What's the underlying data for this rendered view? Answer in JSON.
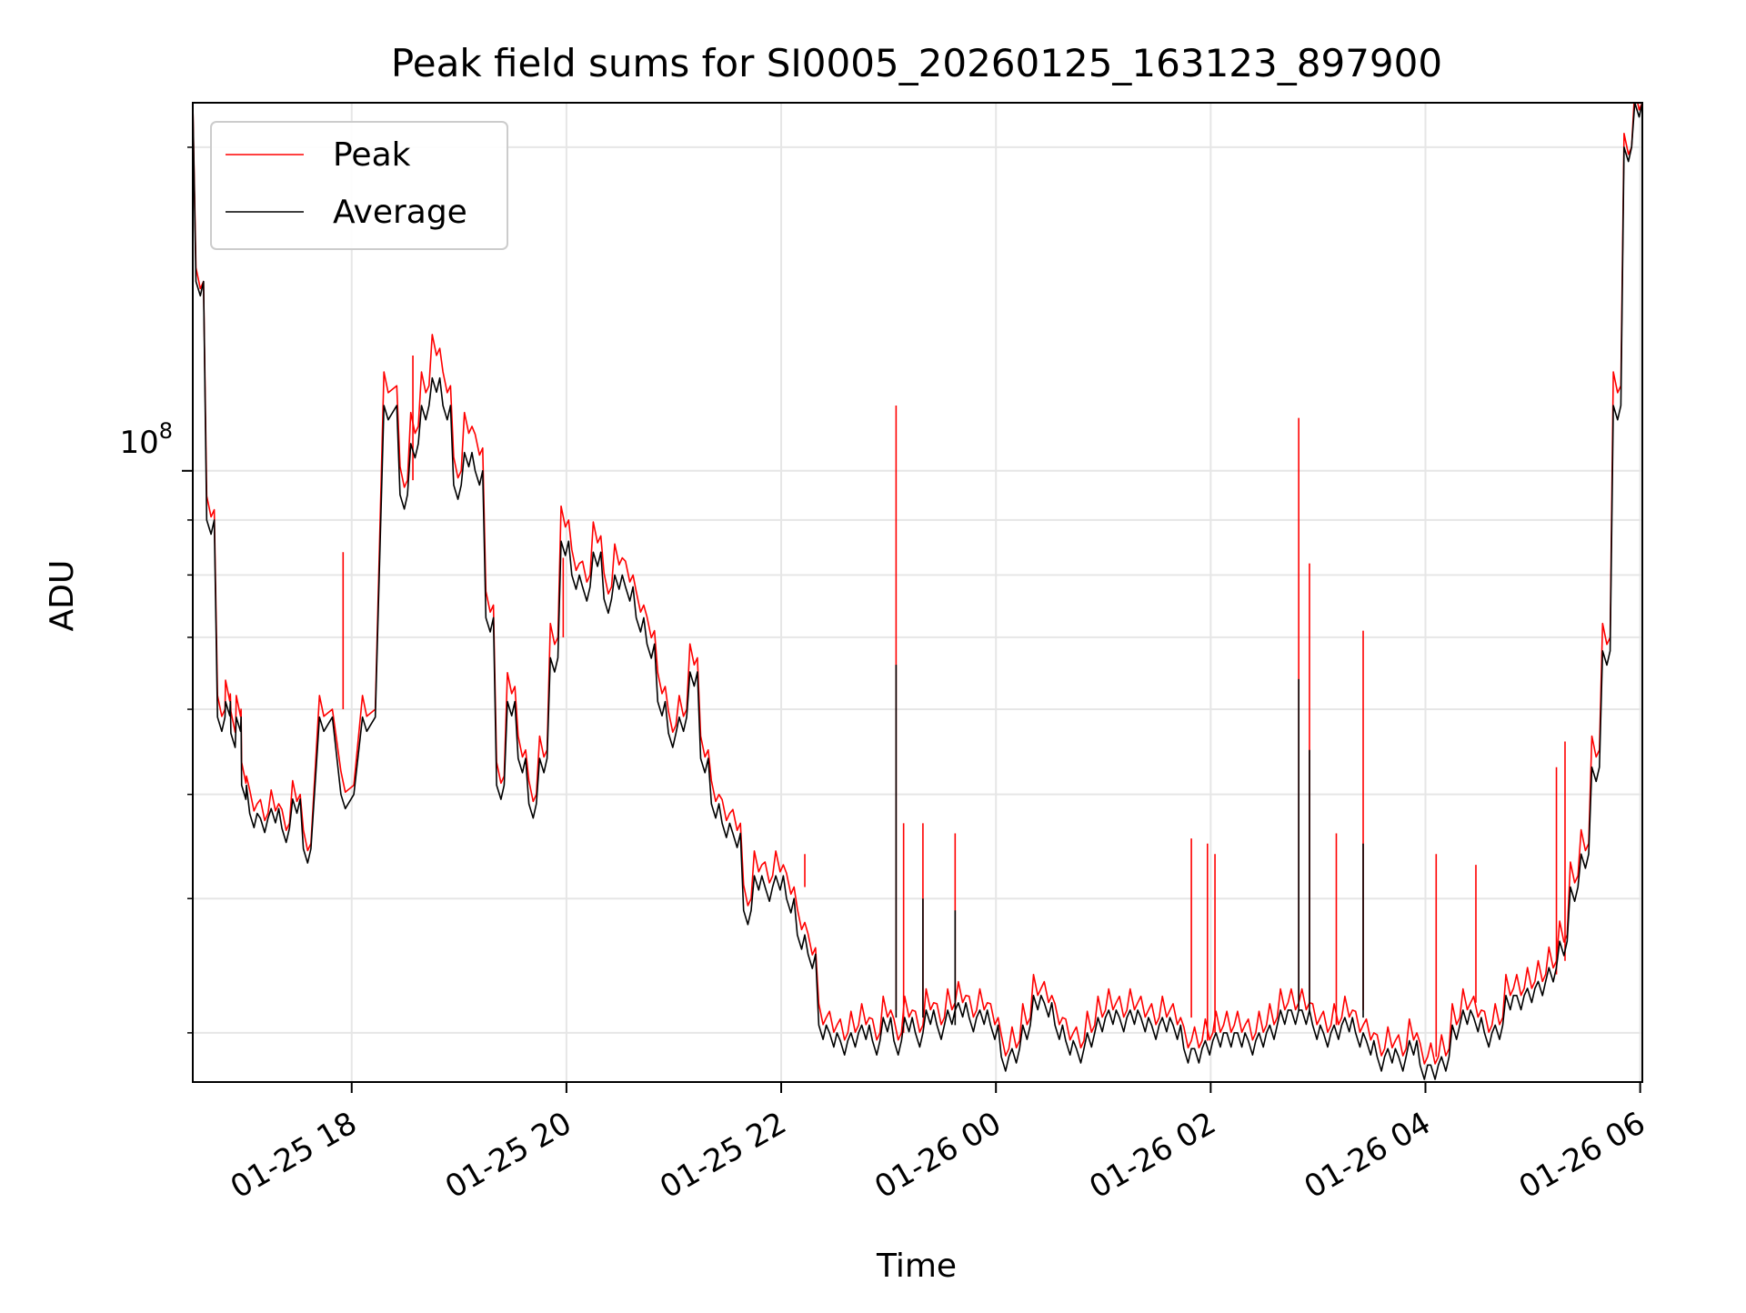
{
  "chart_data": {
    "type": "line",
    "title": "Peak field sums for SI0005_20260125_163123_897900",
    "xlabel": "Time",
    "ylabel": "ADU",
    "yscale": "log",
    "ytick_label": {
      "base": "10",
      "exp": "8"
    },
    "x_unit": "hours since 01-25 16:31",
    "xlim": [
      0,
      13.5
    ],
    "ylim": [
      27000000,
      220000000
    ],
    "x_ticks": [
      {
        "x": 1.48,
        "label": "01-25 18"
      },
      {
        "x": 3.48,
        "label": "01-25 20"
      },
      {
        "x": 5.48,
        "label": "01-25 22"
      },
      {
        "x": 7.48,
        "label": "01-26 00"
      },
      {
        "x": 9.48,
        "label": "01-26 02"
      },
      {
        "x": 11.48,
        "label": "01-26 04"
      },
      {
        "x": 13.48,
        "label": "01-26 06"
      }
    ],
    "y_major_ticks": [
      100000000
    ],
    "y_minor_ticks": [
      30000000,
      40000000,
      50000000,
      60000000,
      70000000,
      80000000,
      90000000,
      200000000
    ],
    "grid": true,
    "legend": {
      "position": "top-left"
    },
    "series": [
      {
        "name": "Peak",
        "color": "#ff0000",
        "x": [
          0.0,
          0.1,
          0.2,
          0.3,
          0.35,
          0.4,
          0.45,
          0.5,
          0.6,
          0.7,
          0.8,
          0.9,
          1.0,
          1.1,
          1.3,
          1.5,
          1.7,
          1.9,
          2.0,
          2.1,
          2.2,
          2.3,
          2.4,
          2.5,
          2.6,
          2.7,
          2.8,
          2.9,
          3.0,
          3.1,
          3.2,
          3.3,
          3.4,
          3.5,
          3.6,
          3.7,
          3.8,
          3.9,
          4.0,
          4.1,
          4.2,
          4.3,
          4.4,
          4.5,
          4.6,
          4.7,
          4.8,
          4.9,
          5.0,
          5.1,
          5.2,
          5.3,
          5.4,
          5.5,
          5.6,
          5.7,
          5.8,
          5.9,
          6.0,
          6.1,
          6.2,
          6.3,
          6.4,
          6.5,
          6.6,
          6.7,
          6.8,
          6.9,
          7.0,
          7.1,
          7.2,
          7.3,
          7.4,
          7.5,
          7.6,
          7.7,
          7.8,
          7.9,
          8.0,
          8.1,
          8.2,
          8.3,
          8.4,
          8.5,
          8.6,
          8.7,
          8.8,
          8.9,
          9.0,
          9.1,
          9.2,
          9.3,
          9.4,
          9.5,
          9.6,
          9.7,
          9.8,
          9.9,
          10.0,
          10.1,
          10.2,
          10.3,
          10.4,
          10.5,
          10.6,
          10.7,
          10.8,
          10.9,
          11.0,
          11.1,
          11.2,
          11.3,
          11.4,
          11.5,
          11.6,
          11.7,
          11.8,
          11.9,
          12.0,
          12.1,
          12.2,
          12.3,
          12.4,
          12.5,
          12.6,
          12.7,
          12.8,
          12.9,
          13.0,
          13.1,
          13.2,
          13.3,
          13.4,
          13.5
        ],
        "values": [
          220000000,
          150000000,
          92000000,
          60000000,
          62000000,
          58000000,
          60000000,
          52000000,
          49000000,
          48000000,
          49000000,
          47000000,
          50000000,
          45000000,
          60000000,
          51000000,
          60000000,
          120000000,
          98000000,
          110000000,
          120000000,
          130000000,
          120000000,
          100000000,
          110000000,
          105000000,
          75000000,
          52000000,
          63000000,
          55000000,
          50000000,
          55000000,
          70000000,
          90000000,
          82000000,
          80000000,
          87000000,
          78000000,
          83000000,
          80000000,
          75000000,
          71000000,
          63000000,
          58000000,
          60000000,
          67000000,
          55000000,
          50000000,
          48000000,
          47000000,
          40000000,
          43000000,
          42000000,
          43000000,
          41000000,
          38000000,
          36000000,
          31000000,
          30500000,
          30000000,
          30500000,
          31000000,
          30000000,
          31500000,
          30000000,
          31500000,
          30500000,
          32000000,
          31000000,
          32000000,
          32500000,
          31500000,
          32000000,
          31000000,
          29000000,
          29500000,
          31000000,
          33000000,
          32500000,
          31000000,
          30000000,
          29500000,
          30500000,
          31500000,
          32000000,
          31500000,
          32000000,
          31500000,
          31000000,
          31500000,
          31000000,
          29500000,
          29500000,
          30000000,
          30500000,
          30500000,
          30500000,
          30000000,
          30500000,
          31000000,
          32000000,
          32000000,
          32000000,
          31000000,
          30500000,
          31000000,
          31500000,
          30500000,
          30000000,
          29000000,
          29500000,
          29000000,
          30000000,
          28500000,
          28500000,
          29000000,
          31000000,
          32000000,
          31500000,
          30500000,
          31000000,
          33000000,
          33000000,
          33500000,
          34000000,
          35000000,
          37000000,
          42000000,
          45000000,
          55000000,
          70000000,
          120000000,
          200000000,
          220000000
        ],
        "spikes": [
          {
            "x": 6.55,
            "value": 115000000
          },
          {
            "x": 6.62,
            "value": 47000000
          },
          {
            "x": 6.8,
            "value": 47000000
          },
          {
            "x": 7.1,
            "value": 46000000
          },
          {
            "x": 5.7,
            "value": 44000000
          },
          {
            "x": 10.3,
            "value": 112000000
          },
          {
            "x": 10.4,
            "value": 82000000
          },
          {
            "x": 10.65,
            "value": 46000000
          },
          {
            "x": 10.9,
            "value": 71000000
          },
          {
            "x": 9.3,
            "value": 45500000
          },
          {
            "x": 9.45,
            "value": 45000000
          },
          {
            "x": 9.52,
            "value": 44000000
          },
          {
            "x": 11.58,
            "value": 44000000
          },
          {
            "x": 11.95,
            "value": 43000000
          },
          {
            "x": 12.7,
            "value": 53000000
          },
          {
            "x": 12.78,
            "value": 56000000
          },
          {
            "x": 1.4,
            "value": 84000000
          },
          {
            "x": 3.45,
            "value": 83000000
          },
          {
            "x": 2.05,
            "value": 128000000
          }
        ]
      },
      {
        "name": "Average",
        "color": "#000000",
        "x": [
          0.0,
          0.1,
          0.2,
          0.3,
          0.35,
          0.4,
          0.45,
          0.5,
          0.6,
          0.7,
          0.8,
          0.9,
          1.0,
          1.1,
          1.3,
          1.5,
          1.7,
          1.9,
          2.0,
          2.1,
          2.2,
          2.3,
          2.4,
          2.5,
          2.6,
          2.7,
          2.8,
          2.9,
          3.0,
          3.1,
          3.2,
          3.3,
          3.4,
          3.5,
          3.6,
          3.7,
          3.8,
          3.9,
          4.0,
          4.1,
          4.2,
          4.3,
          4.4,
          4.5,
          4.6,
          4.7,
          4.8,
          4.9,
          5.0,
          5.1,
          5.2,
          5.3,
          5.4,
          5.5,
          5.6,
          5.7,
          5.8,
          5.9,
          6.0,
          6.1,
          6.2,
          6.3,
          6.4,
          6.5,
          6.6,
          6.7,
          6.8,
          6.9,
          7.0,
          7.1,
          7.2,
          7.3,
          7.4,
          7.5,
          7.6,
          7.7,
          7.8,
          7.9,
          8.0,
          8.1,
          8.2,
          8.3,
          8.4,
          8.5,
          8.6,
          8.7,
          8.8,
          8.9,
          9.0,
          9.1,
          9.2,
          9.3,
          9.4,
          9.5,
          9.6,
          9.7,
          9.8,
          9.9,
          10.0,
          10.1,
          10.2,
          10.3,
          10.4,
          10.5,
          10.6,
          10.7,
          10.8,
          10.9,
          11.0,
          11.1,
          11.2,
          11.3,
          11.4,
          11.5,
          11.6,
          11.7,
          11.8,
          11.9,
          12.0,
          12.1,
          12.2,
          12.3,
          12.4,
          12.5,
          12.6,
          12.7,
          12.8,
          12.9,
          13.0,
          13.1,
          13.2,
          13.3,
          13.4,
          13.5
        ],
        "values": [
          220000000,
          150000000,
          90000000,
          59000000,
          61000000,
          57000000,
          59000000,
          51000000,
          48000000,
          47500000,
          48500000,
          46500000,
          49500000,
          44500000,
          59000000,
          50000000,
          59000000,
          115000000,
          95000000,
          106000000,
          115000000,
          122000000,
          115000000,
          97000000,
          104000000,
          100000000,
          73000000,
          51000000,
          61000000,
          54000000,
          49000000,
          54000000,
          67000000,
          86000000,
          80000000,
          78000000,
          84000000,
          76000000,
          80000000,
          78000000,
          73000000,
          69000000,
          61000000,
          57000000,
          59000000,
          65000000,
          54000000,
          49000000,
          47000000,
          46000000,
          39000000,
          42000000,
          41000000,
          42000000,
          40000000,
          37000000,
          35500000,
          30500000,
          30000000,
          29500000,
          30000000,
          30500000,
          29500000,
          31000000,
          29500000,
          31000000,
          30000000,
          31500000,
          30500000,
          31500000,
          32000000,
          31000000,
          31500000,
          30500000,
          28500000,
          29000000,
          30500000,
          32500000,
          32000000,
          30500000,
          29500000,
          29000000,
          30000000,
          31000000,
          31500000,
          31000000,
          31500000,
          31000000,
          30500000,
          31000000,
          30500000,
          29000000,
          29000000,
          29500000,
          30000000,
          30000000,
          30000000,
          29500000,
          30000000,
          30500000,
          31500000,
          31500000,
          31500000,
          30500000,
          30000000,
          30500000,
          31000000,
          30000000,
          29500000,
          28500000,
          29000000,
          28500000,
          29500000,
          28000000,
          28000000,
          28500000,
          30500000,
          31500000,
          31000000,
          30000000,
          30500000,
          32500000,
          32500000,
          33000000,
          33500000,
          34500000,
          36500000,
          41000000,
          44000000,
          53000000,
          68000000,
          115000000,
          200000000,
          220000000
        ],
        "spikes": [
          {
            "x": 6.55,
            "value": 66000000
          },
          {
            "x": 10.3,
            "value": 64000000
          },
          {
            "x": 10.4,
            "value": 55000000
          },
          {
            "x": 10.9,
            "value": 45000000
          },
          {
            "x": 6.8,
            "value": 40000000
          },
          {
            "x": 7.1,
            "value": 39000000
          }
        ]
      }
    ]
  }
}
